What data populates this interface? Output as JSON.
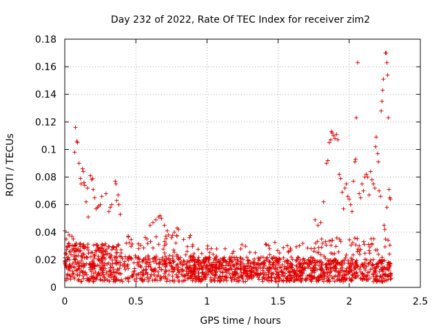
{
  "chart_data": {
    "type": "scatter",
    "title": "Day 232 of 2022, Rate Of TEC Index for receiver zim2",
    "xlabel": "GPS time / hours",
    "ylabel": "ROTI / TECUs",
    "xlim": [
      0,
      2.5
    ],
    "ylim": [
      0,
      0.18
    ],
    "xticks": [
      0,
      0.5,
      1,
      1.5,
      2,
      2.5
    ],
    "xtick_labels": [
      "0",
      "0.5",
      "1",
      "1.5",
      "2",
      "2.5"
    ],
    "yticks": [
      0,
      0.02,
      0.04,
      0.06,
      0.08,
      0.1,
      0.12,
      0.14,
      0.16,
      0.18
    ],
    "ytick_labels": [
      "0",
      "0.02",
      "0.04",
      "0.06",
      "0.08",
      "0.1",
      "0.12",
      "0.14",
      "0.16",
      "0.18"
    ],
    "grid": true,
    "marker": "+",
    "series_color": "#e00000",
    "series": [
      {
        "name": "ROTI",
        "points": [
          [
            0.0,
            0.041
          ],
          [
            0.01,
            0.035
          ],
          [
            0.02,
            0.03
          ],
          [
            0.03,
            0.038
          ],
          [
            0.05,
            0.037
          ],
          [
            0.06,
            0.035
          ],
          [
            0.08,
            0.032
          ],
          [
            0.07,
            0.098
          ],
          [
            0.075,
            0.116
          ],
          [
            0.085,
            0.106
          ],
          [
            0.09,
            0.105
          ],
          [
            0.1,
            0.09
          ],
          [
            0.11,
            0.079
          ],
          [
            0.115,
            0.075
          ],
          [
            0.125,
            0.086
          ],
          [
            0.13,
            0.084
          ],
          [
            0.135,
            0.076
          ],
          [
            0.14,
            0.074
          ],
          [
            0.15,
            0.062
          ],
          [
            0.16,
            0.072
          ],
          [
            0.165,
            0.051
          ],
          [
            0.18,
            0.081
          ],
          [
            0.19,
            0.078
          ],
          [
            0.195,
            0.079
          ],
          [
            0.2,
            0.071
          ],
          [
            0.21,
            0.065
          ],
          [
            0.22,
            0.057
          ],
          [
            0.23,
            0.058
          ],
          [
            0.24,
            0.059
          ],
          [
            0.25,
            0.06
          ],
          [
            0.26,
            0.066
          ],
          [
            0.29,
            0.068
          ],
          [
            0.31,
            0.055
          ],
          [
            0.32,
            0.058
          ],
          [
            0.33,
            0.06
          ],
          [
            0.355,
            0.077
          ],
          [
            0.36,
            0.075
          ],
          [
            0.365,
            0.063
          ],
          [
            0.375,
            0.067
          ],
          [
            0.38,
            0.06
          ],
          [
            0.39,
            0.053
          ],
          [
            0.6,
            0.045
          ],
          [
            0.62,
            0.047
          ],
          [
            0.64,
            0.049
          ],
          [
            0.66,
            0.051
          ],
          [
            0.67,
            0.052
          ],
          [
            0.68,
            0.05
          ],
          [
            0.7,
            0.045
          ],
          [
            0.72,
            0.041
          ],
          [
            0.73,
            0.038
          ],
          [
            0.75,
            0.036
          ],
          [
            0.77,
            0.04
          ],
          [
            0.79,
            0.043
          ],
          [
            0.8,
            0.042
          ],
          [
            1.76,
            0.049
          ],
          [
            1.78,
            0.045
          ],
          [
            1.8,
            0.047
          ],
          [
            1.82,
            0.062
          ],
          [
            1.84,
            0.09
          ],
          [
            1.85,
            0.092
          ],
          [
            1.86,
            0.105
          ],
          [
            1.87,
            0.107
          ],
          [
            1.875,
            0.113
          ],
          [
            1.88,
            0.112
          ],
          [
            1.89,
            0.11
          ],
          [
            1.9,
            0.108
          ],
          [
            1.91,
            0.111
          ],
          [
            1.92,
            0.107
          ],
          [
            1.93,
            0.082
          ],
          [
            1.94,
            0.079
          ],
          [
            1.95,
            0.069
          ],
          [
            1.96,
            0.057
          ],
          [
            1.97,
            0.072
          ],
          [
            1.98,
            0.075
          ],
          [
            1.99,
            0.066
          ],
          [
            2.0,
            0.064
          ],
          [
            2.01,
            0.06
          ],
          [
            2.02,
            0.055
          ],
          [
            2.03,
            0.077
          ],
          [
            2.04,
            0.091
          ],
          [
            2.045,
            0.093
          ],
          [
            2.05,
            0.123
          ],
          [
            2.06,
            0.163
          ],
          [
            2.07,
            0.068
          ],
          [
            2.08,
            0.065
          ],
          [
            2.09,
            0.075
          ],
          [
            2.1,
            0.07
          ],
          [
            2.11,
            0.08
          ],
          [
            2.12,
            0.082
          ],
          [
            2.13,
            0.08
          ],
          [
            2.14,
            0.067
          ],
          [
            2.15,
            0.084
          ],
          [
            2.16,
            0.078
          ],
          [
            2.17,
            0.075
          ],
          [
            2.18,
            0.072
          ],
          [
            2.185,
            0.102
          ],
          [
            2.19,
            0.109
          ],
          [
            2.2,
            0.097
          ],
          [
            2.205,
            0.091
          ],
          [
            2.21,
            0.07
          ],
          [
            2.22,
            0.066
          ],
          [
            2.225,
            0.128
          ],
          [
            2.23,
            0.135
          ],
          [
            2.235,
            0.143
          ],
          [
            2.24,
            0.151
          ],
          [
            2.245,
            0.045
          ],
          [
            2.25,
            0.042
          ],
          [
            2.255,
            0.17
          ],
          [
            2.26,
            0.17
          ],
          [
            2.265,
            0.163
          ],
          [
            2.27,
            0.154
          ],
          [
            2.275,
            0.123
          ],
          [
            2.28,
            0.071
          ],
          [
            2.285,
            0.065
          ],
          [
            2.29,
            0.064
          ],
          [
            2.265,
            0.058
          ],
          [
            2.255,
            0.035
          ]
        ]
      }
    ]
  }
}
